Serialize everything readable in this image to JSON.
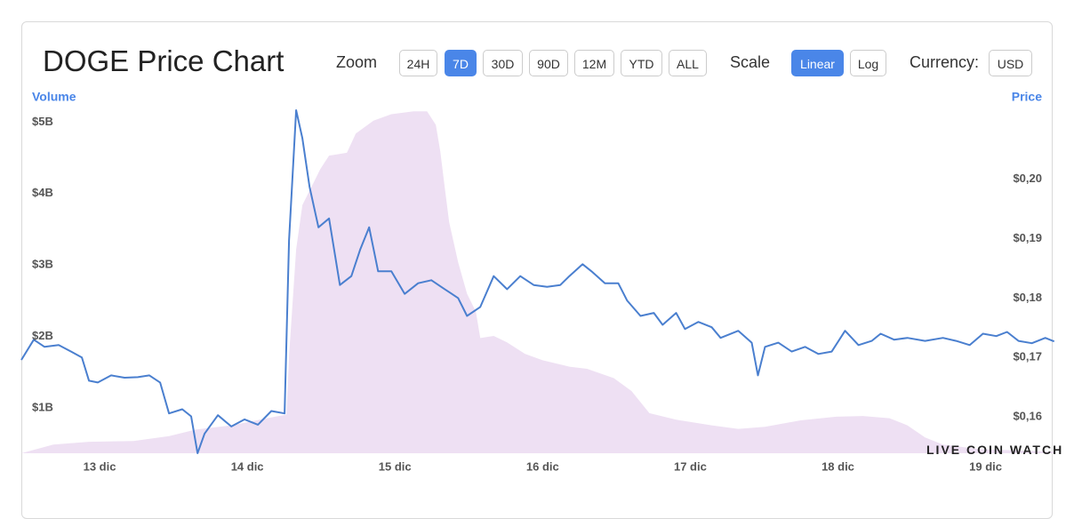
{
  "controls": {
    "zoom": {
      "label": "Zoom",
      "options": [
        "24H",
        "7D",
        "30D",
        "90D",
        "12M",
        "YTD",
        "ALL"
      ],
      "active": 1
    },
    "scale": {
      "label": "Scale",
      "options": [
        "Linear",
        "Log"
      ],
      "active": 0
    },
    "currency": {
      "label": "Currency:",
      "options": [
        "USD"
      ]
    }
  },
  "watermark": "LIVE COIN WATCH",
  "chart_data": {
    "type": "area-line",
    "title": "DOGE Price Chart",
    "ylabel": "Volume",
    "y2label": "Price",
    "xlim": [
      12.47,
      19.46
    ],
    "xticks": [
      {
        "value": 13,
        "label": "13 dic"
      },
      {
        "value": 14,
        "label": "14 dic"
      },
      {
        "value": 15,
        "label": "15 dic"
      },
      {
        "value": 16,
        "label": "16 dic"
      },
      {
        "value": 17,
        "label": "17 dic"
      },
      {
        "value": 18,
        "label": "18 dic"
      },
      {
        "value": 19,
        "label": "19 dic"
      }
    ],
    "ylim": [
      370000000.0,
      5240000000.0
    ],
    "yticks": [
      {
        "value": 1000000000.0,
        "label": "$1B"
      },
      {
        "value": 2000000000.0,
        "label": "$2B"
      },
      {
        "value": 3000000000.0,
        "label": "$3B"
      },
      {
        "value": 4000000000.0,
        "label": "$4B"
      },
      {
        "value": 5000000000.0,
        "label": "$5B"
      }
    ],
    "y2lim": [
      0.1539,
      0.2125
    ],
    "y2ticks": [
      {
        "value": 0.16,
        "label": "$0,16"
      },
      {
        "value": 0.17,
        "label": "$0,17"
      },
      {
        "value": 0.18,
        "label": "$0,18"
      },
      {
        "value": 0.19,
        "label": "$0,19"
      },
      {
        "value": 0.2,
        "label": "$0,20"
      }
    ],
    "series": [
      {
        "kind": "area",
        "axis": "y",
        "color": "#eee0f3",
        "x": [
          12.47,
          12.687,
          12.928,
          13.229,
          13.47,
          13.651,
          13.892,
          14.133,
          14.265,
          14.283,
          14.331,
          14.373,
          14.434,
          14.494,
          14.554,
          14.675,
          14.735,
          14.855,
          14.976,
          15.127,
          15.217,
          15.277,
          15.307,
          15.337,
          15.367,
          15.428,
          15.488,
          15.548,
          15.578,
          15.669,
          15.759,
          15.88,
          16.0,
          16.181,
          16.301,
          16.482,
          16.602,
          16.723,
          16.904,
          17.145,
          17.325,
          17.506,
          17.747,
          17.988,
          18.169,
          18.349,
          18.47,
          18.59,
          18.711,
          18.952,
          19.464
        ],
        "values": [
          370000000.0,
          490000000.0,
          530000000.0,
          540000000.0,
          610000000.0,
          700000000.0,
          760000000.0,
          860000000.0,
          910000000.0,
          1730000000.0,
          3220000000.0,
          3840000000.0,
          4090000000.0,
          4340000000.0,
          4530000000.0,
          4570000000.0,
          4840000000.0,
          5020000000.0,
          5110000000.0,
          5150000000.0,
          5150000000.0,
          4960000000.0,
          4590000000.0,
          4090000000.0,
          3600000000.0,
          3040000000.0,
          2600000000.0,
          2350000000.0,
          1980000000.0,
          2010000000.0,
          1920000000.0,
          1760000000.0,
          1670000000.0,
          1580000000.0,
          1550000000.0,
          1420000000.0,
          1240000000.0,
          930000000.0,
          840000000.0,
          760000000.0,
          710000000.0,
          740000000.0,
          830000000.0,
          880000000.0,
          890000000.0,
          860000000.0,
          760000000.0,
          590000000.0,
          490000000.0,
          430000000.0,
          390000000.0
        ]
      },
      {
        "kind": "line",
        "axis": "y2",
        "color": "#4a7fcf",
        "x": [
          12.47,
          12.554,
          12.627,
          12.723,
          12.807,
          12.88,
          12.928,
          12.988,
          13.078,
          13.169,
          13.259,
          13.337,
          13.41,
          13.47,
          13.56,
          13.62,
          13.663,
          13.711,
          13.801,
          13.892,
          13.982,
          14.072,
          14.163,
          14.253,
          14.283,
          14.331,
          14.373,
          14.422,
          14.482,
          14.554,
          14.627,
          14.705,
          14.765,
          14.825,
          14.886,
          14.976,
          15.066,
          15.157,
          15.247,
          15.337,
          15.428,
          15.488,
          15.578,
          15.669,
          15.759,
          15.849,
          15.94,
          16.03,
          16.12,
          16.181,
          16.271,
          16.331,
          16.422,
          16.512,
          16.572,
          16.663,
          16.753,
          16.813,
          16.904,
          16.964,
          17.054,
          17.145,
          17.205,
          17.325,
          17.416,
          17.458,
          17.506,
          17.596,
          17.687,
          17.777,
          17.867,
          17.958,
          18.048,
          18.139,
          18.229,
          18.289,
          18.38,
          18.47,
          18.59,
          18.711,
          18.801,
          18.892,
          18.982,
          19.072,
          19.145,
          19.223,
          19.313,
          19.404,
          19.464
        ],
        "values": [
          0.1696,
          0.173,
          0.1718,
          0.1721,
          0.171,
          0.17,
          0.1661,
          0.1658,
          0.167,
          0.1666,
          0.1667,
          0.167,
          0.1658,
          0.1606,
          0.1613,
          0.1601,
          0.1539,
          0.1572,
          0.1603,
          0.1584,
          0.1596,
          0.1587,
          0.161,
          0.1606,
          0.1897,
          0.2116,
          0.2069,
          0.1987,
          0.1919,
          0.1934,
          0.1822,
          0.1837,
          0.1882,
          0.1919,
          0.1845,
          0.1845,
          0.1807,
          0.1825,
          0.183,
          0.1815,
          0.18,
          0.177,
          0.1785,
          0.1837,
          0.1815,
          0.1837,
          0.1822,
          0.1819,
          0.1822,
          0.1837,
          0.1857,
          0.1845,
          0.1825,
          0.1825,
          0.1796,
          0.177,
          0.1775,
          0.1755,
          0.1775,
          0.1748,
          0.176,
          0.1751,
          0.1733,
          0.1745,
          0.1725,
          0.167,
          0.1718,
          0.1725,
          0.171,
          0.1718,
          0.1706,
          0.171,
          0.1745,
          0.1721,
          0.1728,
          0.174,
          0.173,
          0.1733,
          0.1728,
          0.1733,
          0.1728,
          0.1721,
          0.174,
          0.1736,
          0.1743,
          0.1728,
          0.1724,
          0.1733,
          0.1727
        ]
      }
    ]
  }
}
